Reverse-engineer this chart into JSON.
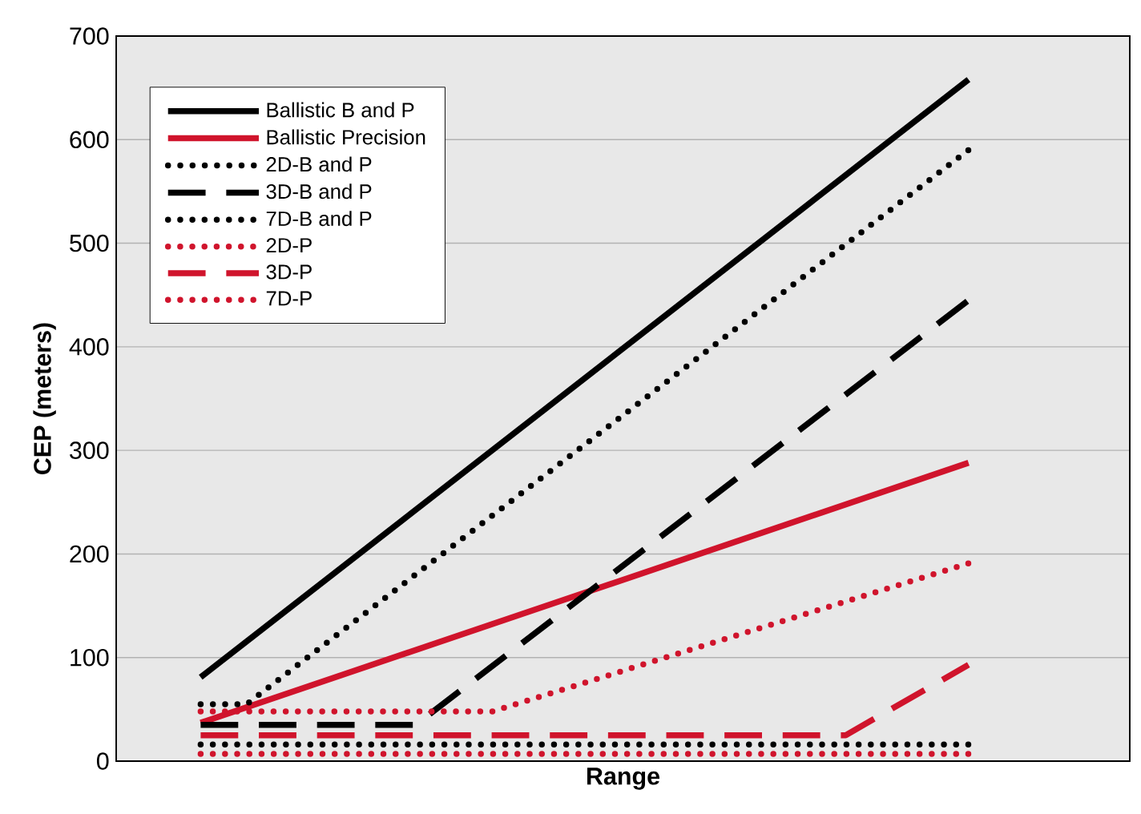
{
  "chart_data": {
    "type": "line",
    "xlabel": "Range",
    "ylabel": "CEP (meters)",
    "categories": [
      null,
      null,
      null,
      null,
      null,
      null,
      null,
      null,
      null,
      null,
      null,
      null,
      null,
      null,
      null,
      null,
      null,
      null,
      null,
      null,
      null,
      null,
      null,
      null,
      null,
      null,
      null,
      null,
      null,
      null,
      null,
      null,
      null,
      null,
      null,
      null,
      null,
      null,
      null,
      null,
      null,
      null,
      null,
      null,
      null,
      null,
      null,
      null,
      null,
      null,
      null,
      null,
      null,
      null,
      null,
      null,
      null,
      null,
      null,
      null,
      null,
      null,
      null,
      null,
      null,
      null
    ],
    "ylim": [
      0,
      700
    ],
    "yticks": [
      0,
      100,
      200,
      300,
      400,
      500,
      600,
      700
    ],
    "grid": "y",
    "legend": "top left",
    "series": [
      {
        "name": "Ballistic B and P",
        "color": "#000000",
        "line_style": "solid",
        "values": [
          null,
          null,
          null,
          null,
          null,
          81,
          null,
          null,
          null,
          null,
          null,
          null,
          null,
          null,
          null,
          null,
          null,
          null,
          null,
          null,
          null,
          null,
          null,
          null,
          null,
          null,
          null,
          null,
          null,
          null,
          null,
          null,
          null,
          null,
          null,
          null,
          null,
          null,
          null,
          null,
          null,
          null,
          null,
          null,
          null,
          null,
          null,
          null,
          null,
          null,
          null,
          null,
          null,
          null,
          null,
          658,
          null,
          null,
          null,
          null,
          null,
          null,
          null,
          null,
          null,
          null
        ]
      },
      {
        "name": "Ballistic Precision",
        "color": "#d0142c",
        "line_style": "solid",
        "values": [
          null,
          null,
          null,
          null,
          null,
          37,
          null,
          null,
          null,
          null,
          null,
          null,
          null,
          null,
          null,
          null,
          null,
          null,
          null,
          null,
          null,
          null,
          null,
          null,
          null,
          null,
          null,
          null,
          null,
          null,
          null,
          null,
          null,
          null,
          null,
          null,
          null,
          null,
          null,
          null,
          null,
          null,
          null,
          null,
          null,
          null,
          null,
          null,
          null,
          null,
          null,
          null,
          null,
          null,
          null,
          288,
          null,
          null,
          null,
          null,
          null,
          null,
          null,
          null,
          null,
          null
        ]
      },
      {
        "name": "2D-B and P",
        "color": "#000000",
        "line_style": "dotted",
        "values": [
          null,
          null,
          null,
          null,
          null,
          55,
          null,
          null,
          55,
          null,
          null,
          null,
          null,
          null,
          null,
          null,
          null,
          null,
          null,
          null,
          null,
          null,
          null,
          null,
          null,
          null,
          null,
          null,
          null,
          null,
          null,
          null,
          null,
          null,
          null,
          null,
          null,
          null,
          null,
          null,
          null,
          null,
          null,
          null,
          null,
          null,
          null,
          null,
          null,
          null,
          null,
          null,
          null,
          null,
          null,
          590,
          null,
          null,
          null,
          null,
          null,
          null,
          null,
          null,
          null,
          null
        ]
      },
      {
        "name": "3D-B and P",
        "color": "#000000",
        "line_style": "dashed",
        "values": [
          null,
          null,
          null,
          null,
          null,
          35,
          null,
          null,
          null,
          null,
          null,
          null,
          null,
          null,
          null,
          null,
          null,
          null,
          null,
          35,
          null,
          null,
          null,
          null,
          null,
          null,
          null,
          null,
          null,
          null,
          null,
          null,
          null,
          null,
          null,
          null,
          null,
          null,
          null,
          null,
          null,
          null,
          null,
          null,
          null,
          null,
          null,
          null,
          null,
          null,
          null,
          null,
          null,
          null,
          null,
          445,
          null,
          null,
          null,
          null,
          null,
          null,
          null,
          null,
          null,
          null
        ]
      },
      {
        "name": "7D-B and P",
        "color": "#000000",
        "line_style": "dotted",
        "values": [
          null,
          null,
          null,
          null,
          null,
          16,
          null,
          null,
          null,
          null,
          null,
          null,
          null,
          null,
          null,
          null,
          null,
          null,
          null,
          null,
          null,
          null,
          null,
          null,
          null,
          null,
          null,
          null,
          null,
          null,
          null,
          null,
          null,
          null,
          null,
          null,
          null,
          null,
          null,
          null,
          null,
          null,
          null,
          null,
          null,
          null,
          null,
          null,
          null,
          null,
          null,
          null,
          null,
          null,
          null,
          16,
          null,
          null,
          null,
          null,
          null,
          null,
          null,
          null,
          null,
          null
        ]
      },
      {
        "name": "2D-P",
        "color": "#d0142c",
        "line_style": "dotted",
        "values": [
          null,
          null,
          null,
          null,
          null,
          48,
          null,
          null,
          null,
          null,
          null,
          null,
          null,
          null,
          null,
          null,
          null,
          null,
          null,
          null,
          null,
          null,
          null,
          null,
          48,
          null,
          null,
          null,
          null,
          null,
          null,
          null,
          null,
          null,
          null,
          null,
          null,
          null,
          null,
          null,
          null,
          null,
          null,
          null,
          null,
          null,
          null,
          null,
          null,
          null,
          null,
          null,
          null,
          null,
          null,
          191,
          null,
          null,
          null,
          null,
          null,
          null,
          null,
          null,
          null,
          null
        ]
      },
      {
        "name": "3D-P",
        "color": "#d0142c",
        "line_style": "dashed",
        "values": [
          null,
          null,
          null,
          null,
          null,
          25,
          null,
          null,
          null,
          null,
          null,
          null,
          null,
          null,
          null,
          null,
          null,
          null,
          null,
          null,
          null,
          null,
          null,
          null,
          null,
          null,
          null,
          null,
          null,
          null,
          null,
          null,
          null,
          null,
          null,
          null,
          null,
          null,
          null,
          null,
          null,
          null,
          null,
          null,
          null,
          null,
          null,
          25,
          null,
          null,
          null,
          null,
          null,
          null,
          null,
          93,
          null,
          null,
          null,
          null,
          null,
          null,
          null,
          null,
          null,
          null
        ]
      },
      {
        "name": "7D-P",
        "color": "#d0142c",
        "line_style": "dotted",
        "values": [
          null,
          null,
          null,
          null,
          null,
          7,
          null,
          null,
          null,
          null,
          null,
          null,
          null,
          null,
          null,
          null,
          null,
          null,
          null,
          null,
          null,
          null,
          null,
          null,
          null,
          null,
          null,
          null,
          null,
          null,
          null,
          null,
          null,
          null,
          null,
          null,
          null,
          null,
          null,
          null,
          null,
          null,
          null,
          null,
          null,
          null,
          null,
          null,
          null,
          null,
          null,
          null,
          null,
          null,
          null,
          7,
          null,
          null,
          null,
          null,
          null,
          null,
          null,
          null,
          null,
          null
        ]
      }
    ]
  }
}
